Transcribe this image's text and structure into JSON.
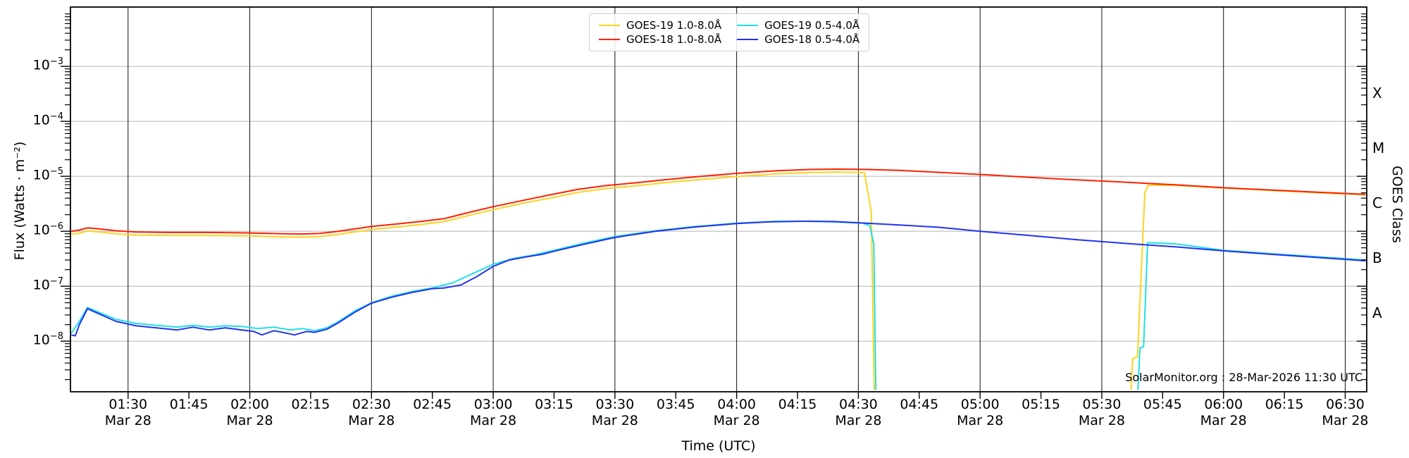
{
  "annotation": "SolarMonitor.org : 28-Mar-2026 11:30 UTC",
  "axes": {
    "x_label": "Time (UTC)",
    "y_label_left": "Flux (Watts · m⁻²)",
    "y_label_right": "GOES Class",
    "x_ticks": [
      {
        "t": 90,
        "label": "01:30",
        "date": "Mar 28"
      },
      {
        "t": 105,
        "label": "01:45"
      },
      {
        "t": 120,
        "label": "02:00",
        "date": "Mar 28"
      },
      {
        "t": 135,
        "label": "02:15"
      },
      {
        "t": 150,
        "label": "02:30",
        "date": "Mar 28"
      },
      {
        "t": 165,
        "label": "02:45"
      },
      {
        "t": 180,
        "label": "03:00",
        "date": "Mar 28"
      },
      {
        "t": 195,
        "label": "03:15"
      },
      {
        "t": 210,
        "label": "03:30",
        "date": "Mar 28"
      },
      {
        "t": 225,
        "label": "03:45"
      },
      {
        "t": 240,
        "label": "04:00",
        "date": "Mar 28"
      },
      {
        "t": 255,
        "label": "04:15"
      },
      {
        "t": 270,
        "label": "04:30",
        "date": "Mar 28"
      },
      {
        "t": 285,
        "label": "04:45"
      },
      {
        "t": 300,
        "label": "05:00",
        "date": "Mar 28"
      },
      {
        "t": 315,
        "label": "05:15"
      },
      {
        "t": 330,
        "label": "05:30",
        "date": "Mar 28"
      },
      {
        "t": 345,
        "label": "05:45"
      },
      {
        "t": 360,
        "label": "06:00",
        "date": "Mar 28"
      },
      {
        "t": 375,
        "label": "06:15"
      },
      {
        "t": 390,
        "label": "06:30",
        "date": "Mar 28"
      }
    ],
    "y_tick_exponents": [
      -3,
      -4,
      -5,
      -6,
      -7,
      -8
    ],
    "class_labels": [
      {
        "label": "X",
        "exp": -3.5
      },
      {
        "label": "M",
        "exp": -4.5
      },
      {
        "label": "C",
        "exp": -5.5
      },
      {
        "label": "B",
        "exp": -6.5
      },
      {
        "label": "A",
        "exp": -7.5
      }
    ]
  },
  "legend": [
    {
      "label": "GOES-19 1.0-8.0Å",
      "color": "#ffd21e"
    },
    {
      "label": "GOES-18 1.0-8.0Å",
      "color": "#ff2000"
    },
    {
      "label": "GOES-19 0.5-4.0Å",
      "color": "#1fe0e6"
    },
    {
      "label": "GOES-18 0.5-4.0Å",
      "color": "#2233ee"
    }
  ],
  "colors": {
    "grid_horizontal": "#bbbbbb",
    "grid_vertical": "#111111",
    "spine": "#000000"
  },
  "chart_data": {
    "type": "line",
    "title": "",
    "xlabel": "Time (UTC)",
    "ylabel": "Flux (Watts · m⁻²)",
    "x_unit": "minutes UTC on 28-Mar-2026",
    "xlim": [
      75.8,
      395.3
    ],
    "ylim": [
      1.2e-09,
      0.012
    ],
    "y_scale": "log",
    "grid": {
      "vertical_every_min": 30,
      "horizontal": "decades"
    },
    "legend_position": "top-center",
    "series": [
      {
        "name": "GOES-19 1.0-8.0Å",
        "color": "#ffd21e",
        "segments": [
          [
            [
              76,
              8.8e-07
            ],
            [
              78,
              9.2e-07
            ],
            [
              80,
              1.01e-06
            ],
            [
              83,
              9.7e-07
            ],
            [
              87,
              9e-07
            ],
            [
              92,
              8.5e-07
            ],
            [
              100,
              8.4e-07
            ],
            [
              110,
              8.4e-07
            ],
            [
              120,
              8.2e-07
            ],
            [
              128,
              7.9e-07
            ],
            [
              133,
              7.8e-07
            ],
            [
              137,
              8e-07
            ],
            [
              141,
              8.6e-07
            ],
            [
              145,
              9.5e-07
            ],
            [
              150,
              1.07e-06
            ],
            [
              156,
              1.19e-06
            ],
            [
              162,
              1.32e-06
            ],
            [
              168,
              1.5e-06
            ],
            [
              174,
              1.94e-06
            ],
            [
              180,
              2.46e-06
            ],
            [
              187,
              3.2e-06
            ],
            [
              194,
              4e-06
            ],
            [
              201,
              5.1e-06
            ],
            [
              208,
              6e-06
            ],
            [
              215,
              6.7e-06
            ],
            [
              222,
              7.6e-06
            ],
            [
              230,
              8.6e-06
            ],
            [
              240,
              9.9e-06
            ],
            [
              250,
              1.11e-05
            ],
            [
              258,
              1.17e-05
            ],
            [
              265,
              1.19e-05
            ],
            [
              271.5,
              1.17e-05
            ],
            [
              273.2,
              2.2e-06
            ],
            [
              273.9,
              1.3e-09
            ]
          ],
          [
            [
              337.2,
              1.3e-09
            ],
            [
              337.6,
              4.8e-09
            ],
            [
              338.8,
              5.2e-09
            ],
            [
              340.6,
              5e-06
            ],
            [
              341.4,
              6.9e-06
            ],
            [
              348,
              6.85e-06
            ],
            [
              360,
              6.1e-06
            ],
            [
              372,
              5.5e-06
            ],
            [
              384,
              5e-06
            ],
            [
              395,
              4.6e-06
            ]
          ]
        ]
      },
      {
        "name": "GOES-18 1.0-8.0Å",
        "color": "#ff2000",
        "segments": [
          [
            [
              76,
              1e-06
            ],
            [
              78,
              1.05e-06
            ],
            [
              80,
              1.15e-06
            ],
            [
              83,
              1.1e-06
            ],
            [
              87,
              1.02e-06
            ],
            [
              92,
              9.7e-07
            ],
            [
              100,
              9.5e-07
            ],
            [
              110,
              9.5e-07
            ],
            [
              120,
              9.3e-07
            ],
            [
              128,
              9e-07
            ],
            [
              133,
              8.9e-07
            ],
            [
              137,
              9.1e-07
            ],
            [
              141,
              9.8e-07
            ],
            [
              145,
              1.08e-06
            ],
            [
              150,
              1.22e-06
            ],
            [
              156,
              1.35e-06
            ],
            [
              162,
              1.5e-06
            ],
            [
              168,
              1.7e-06
            ],
            [
              174,
              2.2e-06
            ],
            [
              180,
              2.8e-06
            ],
            [
              187,
              3.6e-06
            ],
            [
              194,
              4.6e-06
            ],
            [
              201,
              5.8e-06
            ],
            [
              208,
              6.8e-06
            ],
            [
              215,
              7.6e-06
            ],
            [
              222,
              8.6e-06
            ],
            [
              230,
              9.8e-06
            ],
            [
              240,
              1.13e-05
            ],
            [
              250,
              1.26e-05
            ],
            [
              258,
              1.33e-05
            ],
            [
              265,
              1.35e-05
            ],
            [
              272,
              1.33e-05
            ],
            [
              280,
              1.28e-05
            ],
            [
              290,
              1.18e-05
            ],
            [
              300,
              1.08e-05
            ],
            [
              312,
              9.6e-06
            ],
            [
              324,
              8.6e-06
            ],
            [
              336,
              7.8e-06
            ],
            [
              348,
              7e-06
            ],
            [
              360,
              6.2e-06
            ],
            [
              372,
              5.6e-06
            ],
            [
              384,
              5.1e-06
            ],
            [
              395,
              4.7e-06
            ]
          ]
        ]
      },
      {
        "name": "GOES-19 0.5-4.0Å",
        "color": "#1fe0e6",
        "segments": [
          [
            [
              76,
              1.4e-08
            ],
            [
              78,
              2.3e-08
            ],
            [
              80,
              4.1e-08
            ],
            [
              83,
              3.3e-08
            ],
            [
              87,
              2.5e-08
            ],
            [
              92,
              2.1e-08
            ],
            [
              97,
              1.95e-08
            ],
            [
              102,
              1.8e-08
            ],
            [
              106,
              1.95e-08
            ],
            [
              110,
              1.8e-08
            ],
            [
              114,
              1.9e-08
            ],
            [
              118,
              1.85e-08
            ],
            [
              122,
              1.7e-08
            ],
            [
              126,
              1.8e-08
            ],
            [
              130,
              1.6e-08
            ],
            [
              133,
              1.7e-08
            ],
            [
              136,
              1.55e-08
            ],
            [
              139,
              1.75e-08
            ],
            [
              142,
              2.3e-08
            ],
            [
              146,
              3.6e-08
            ],
            [
              150,
              5e-08
            ],
            [
              155,
              6.6e-08
            ],
            [
              160,
              8e-08
            ],
            [
              165,
              9.3e-08
            ],
            [
              170,
              1.15e-07
            ],
            [
              175,
              1.7e-07
            ],
            [
              180,
              2.5e-07
            ],
            [
              185,
              3.2e-07
            ],
            [
              190,
              3.7e-07
            ],
            [
              196,
              4.7e-07
            ],
            [
              202,
              6e-07
            ],
            [
              210,
              8e-07
            ],
            [
              220,
              1.02e-06
            ],
            [
              230,
              1.22e-06
            ],
            [
              240,
              1.4e-06
            ],
            [
              250,
              1.52e-06
            ],
            [
              258,
              1.52e-06
            ],
            [
              265,
              1.47e-06
            ],
            [
              271,
              1.4e-06
            ],
            [
              272.8,
              1.28e-06
            ],
            [
              273.8,
              6e-07
            ],
            [
              274.3,
              1.3e-09
            ]
          ],
          [
            [
              338.9,
              1.3e-09
            ],
            [
              339.4,
              7.5e-09
            ],
            [
              340.3,
              8e-09
            ],
            [
              341.3,
              6.2e-07
            ],
            [
              348,
              5.9e-07
            ],
            [
              360,
              4.5e-07
            ],
            [
              372,
              3.9e-07
            ],
            [
              384,
              3.4e-07
            ],
            [
              395,
              3e-07
            ]
          ]
        ]
      },
      {
        "name": "GOES-18 0.5-4.0Å",
        "color": "#2233ee",
        "segments": [
          [
            [
              76,
              1.3e-08
            ],
            [
              77,
              1.25e-08
            ],
            [
              78,
              2e-08
            ],
            [
              80,
              3.9e-08
            ],
            [
              83,
              3.1e-08
            ],
            [
              87,
              2.3e-08
            ],
            [
              92,
              1.9e-08
            ],
            [
              97,
              1.75e-08
            ],
            [
              102,
              1.6e-08
            ],
            [
              106,
              1.8e-08
            ],
            [
              110,
              1.6e-08
            ],
            [
              114,
              1.75e-08
            ],
            [
              118,
              1.6e-08
            ],
            [
              121,
              1.5e-08
            ],
            [
              123,
              1.3e-08
            ],
            [
              126,
              1.55e-08
            ],
            [
              129,
              1.4e-08
            ],
            [
              131,
              1.3e-08
            ],
            [
              134,
              1.5e-08
            ],
            [
              136,
              1.45e-08
            ],
            [
              139,
              1.65e-08
            ],
            [
              142,
              2.2e-08
            ],
            [
              146,
              3.4e-08
            ],
            [
              150,
              4.9e-08
            ],
            [
              155,
              6.3e-08
            ],
            [
              160,
              7.7e-08
            ],
            [
              165,
              9e-08
            ],
            [
              168,
              9.3e-08
            ],
            [
              172,
              1.05e-07
            ],
            [
              176,
              1.5e-07
            ],
            [
              180,
              2.3e-07
            ],
            [
              184,
              3e-07
            ],
            [
              188,
              3.4e-07
            ],
            [
              192,
              3.8e-07
            ],
            [
              196,
              4.5e-07
            ],
            [
              202,
              5.7e-07
            ],
            [
              210,
              7.7e-07
            ],
            [
              220,
              1e-06
            ],
            [
              230,
              1.2e-06
            ],
            [
              240,
              1.38e-06
            ],
            [
              248,
              1.48e-06
            ],
            [
              256,
              1.52e-06
            ],
            [
              264,
              1.5e-06
            ],
            [
              272,
              1.4e-06
            ],
            [
              280,
              1.3e-06
            ],
            [
              290,
              1.18e-06
            ],
            [
              300,
              1e-06
            ],
            [
              312,
              8.4e-07
            ],
            [
              324,
              7e-07
            ],
            [
              336,
              6e-07
            ],
            [
              348,
              5.2e-07
            ],
            [
              360,
              4.4e-07
            ],
            [
              372,
              3.8e-07
            ],
            [
              384,
              3.3e-07
            ],
            [
              395,
              2.9e-07
            ]
          ]
        ]
      }
    ]
  }
}
